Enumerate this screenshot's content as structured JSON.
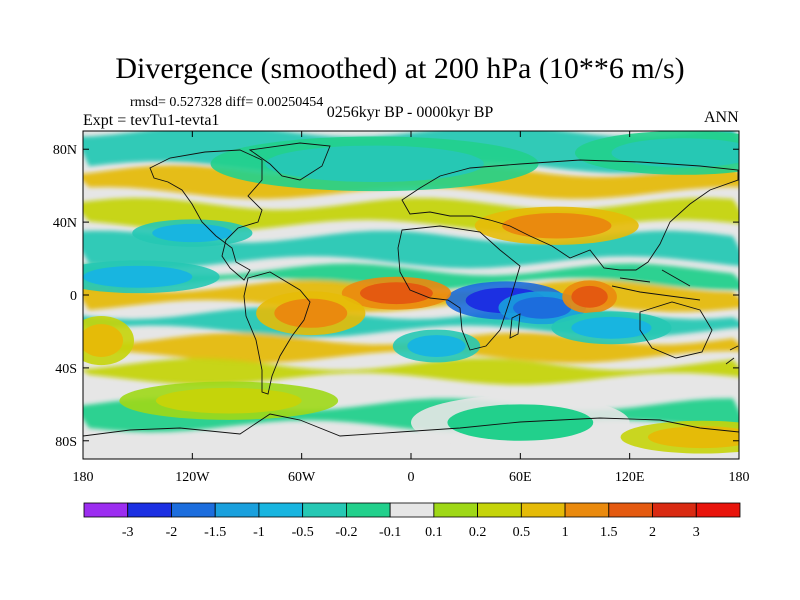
{
  "chart_data": {
    "type": "heatmap",
    "title": "Divergence (smoothed) at 200 hPa (10**6 m/s)",
    "subtitle_left": "rmsd= 0.527328 diff= 0.00250454",
    "subtitle_center": "0256kyr BP - 0000kyr BP",
    "experiment": "Expt = tevTu1-tevta1",
    "season": "ANN",
    "xlabel": "",
    "ylabel": "",
    "xlim": [
      -180,
      180
    ],
    "ylim": [
      -90,
      90
    ],
    "x_ticks": [
      {
        "value": -180,
        "label": "180"
      },
      {
        "value": -120,
        "label": "120W"
      },
      {
        "value": -60,
        "label": "60W"
      },
      {
        "value": 0,
        "label": "0"
      },
      {
        "value": 60,
        "label": "60E"
      },
      {
        "value": 120,
        "label": "120E"
      },
      {
        "value": 180,
        "label": "180"
      }
    ],
    "y_ticks": [
      {
        "value": 80,
        "label": "80N"
      },
      {
        "value": 40,
        "label": "40N"
      },
      {
        "value": 0,
        "label": "0"
      },
      {
        "value": -40,
        "label": "40S"
      },
      {
        "value": -80,
        "label": "80S"
      }
    ],
    "colorbar": {
      "levels": [
        -3,
        -2,
        -1.5,
        -1,
        -0.5,
        -0.2,
        -0.1,
        0.1,
        0.2,
        0.5,
        1,
        1.5,
        2,
        3
      ],
      "labels": [
        "-3",
        "-2",
        "-1.5",
        "-1",
        "-0.5",
        "-0.2",
        "-0.1",
        "0.1",
        "0.2",
        "0.5",
        "1",
        "1.5",
        "2",
        "3"
      ],
      "colors": [
        "#9c2df0",
        "#1c30e2",
        "#1c6ddd",
        "#1aa0dd",
        "#18b5e0",
        "#26c8b4",
        "#22d08c",
        "#e6e6e6",
        "#9fd817",
        "#c5d40a",
        "#e5bb08",
        "#ea8a0e",
        "#e45a10",
        "#d92a12",
        "#e8140c"
      ]
    },
    "features": [
      {
        "lon": 52,
        "lat": -3,
        "value": -3,
        "shape": [
          22,
          7
        ]
      },
      {
        "lon": 72,
        "lat": -7,
        "value": -2,
        "shape": [
          16,
          6
        ]
      },
      {
        "lon": 98,
        "lat": -1,
        "value": 1.5,
        "shape": [
          10,
          6
        ]
      },
      {
        "lon": -8,
        "lat": 1,
        "value": 1.5,
        "shape": [
          20,
          6
        ]
      },
      {
        "lon": -55,
        "lat": -10,
        "value": 1,
        "shape": [
          20,
          8
        ]
      },
      {
        "lon": -150,
        "lat": 10,
        "value": -1,
        "shape": [
          30,
          6
        ]
      },
      {
        "lon": -120,
        "lat": 34,
        "value": -1,
        "shape": [
          22,
          5
        ]
      },
      {
        "lon": -170,
        "lat": -25,
        "value": 0.5,
        "shape": [
          12,
          9
        ]
      },
      {
        "lon": 14,
        "lat": -28,
        "value": -1,
        "shape": [
          16,
          6
        ]
      },
      {
        "lon": 80,
        "lat": 38,
        "value": 1,
        "shape": [
          30,
          7
        ]
      },
      {
        "lon": -20,
        "lat": 72,
        "value": -0.5,
        "shape": [
          60,
          10
        ]
      },
      {
        "lon": 150,
        "lat": 78,
        "value": -0.5,
        "shape": [
          40,
          8
        ]
      },
      {
        "lon": 110,
        "lat": -18,
        "value": -1,
        "shape": [
          22,
          6
        ]
      },
      {
        "lon": 60,
        "lat": -70,
        "value": -0.2,
        "shape": [
          40,
          10
        ]
      },
      {
        "lon": -100,
        "lat": -58,
        "value": 0.2,
        "shape": [
          40,
          7
        ]
      },
      {
        "lon": 160,
        "lat": -78,
        "value": 0.5,
        "shape": [
          30,
          6
        ]
      }
    ]
  }
}
